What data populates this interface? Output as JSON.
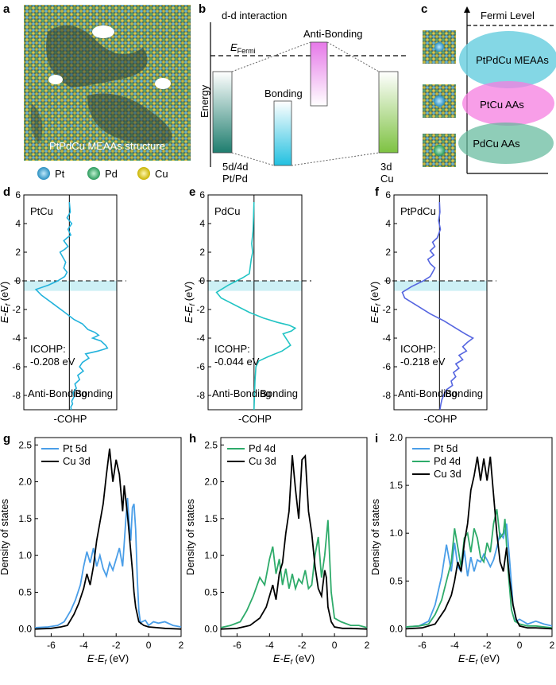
{
  "panel_labels": [
    "a",
    "b",
    "c",
    "d",
    "e",
    "f",
    "g",
    "h",
    "i"
  ],
  "panel_a": {
    "caption": "PtPdCu MEAAs structure",
    "legend": [
      {
        "label": "Pt",
        "color": "#3aa6d8"
      },
      {
        "label": "Pd",
        "color": "#3cb371"
      },
      {
        "label": "Cu",
        "color": "#e6d21c"
      }
    ]
  },
  "panel_b": {
    "title": "d-d interaction",
    "y_label": "Energy",
    "fermi_label": "E",
    "fermi_sub": "Fermi",
    "bonding": "Bonding",
    "antibonding": "Anti-Bonding",
    "left_bottom_1": "5d/4d",
    "left_bottom_2": "Pt/Pd",
    "right_bottom_1": "3d",
    "right_bottom_2": "Cu"
  },
  "panel_c": {
    "fermi_label": "Fermi Level",
    "ellipses": [
      "PtPdCu MEAAs",
      "PtCu AAs",
      "PdCu AAs"
    ],
    "colors": [
      "#6fd0e0",
      "#f57de0",
      "#5fb89a"
    ]
  },
  "chart_data": [
    {
      "panel": "d",
      "type": "line",
      "title": "PtCu",
      "series_color": "#22b2dc",
      "ylabel": "E-E",
      "ylabel_sub": "f",
      "ylabel_unit": " (eV)",
      "xlabel": "-COHP",
      "ylim": [
        -9,
        6
      ],
      "yticks": [
        -8,
        -6,
        -4,
        -2,
        0,
        2,
        4,
        6
      ],
      "left_label": "Anti-Bonding",
      "right_label": "Bonding",
      "icohp_label": "ICOHP:",
      "icohp_value": "-0.208 eV",
      "x": [
        0,
        0.02,
        -0.05,
        0.05,
        -0.03,
        0.03,
        -0.05,
        -0.12,
        -0.03,
        -0.1,
        -0.2,
        -0.15,
        -0.08,
        -0.12,
        -0.05,
        -0.1,
        -0.25,
        -0.45,
        -0.72,
        -0.6,
        -0.35,
        -0.1,
        0.1,
        0.28,
        0.4,
        0.55,
        0.63,
        0.5,
        0.68,
        0.78,
        0.82,
        0.62,
        0.35,
        0.42,
        0.28,
        0.22,
        0.3,
        0.18,
        0.22,
        0.12,
        0.15,
        0.08,
        0.1,
        0.05,
        0.07,
        0.03,
        0.04
      ],
      "y": [
        5.5,
        4.8,
        4.4,
        4.0,
        3.6,
        3.2,
        3.0,
        2.8,
        2.4,
        2.2,
        2.0,
        1.7,
        1.3,
        0.9,
        0.6,
        0.3,
        0.0,
        -0.3,
        -0.6,
        -1.0,
        -1.6,
        -2.2,
        -2.7,
        -3.0,
        -3.4,
        -3.6,
        -3.8,
        -4.0,
        -4.2,
        -4.5,
        -4.7,
        -4.9,
        -5.1,
        -5.4,
        -5.7,
        -6.0,
        -6.3,
        -6.6,
        -6.9,
        -7.2,
        -7.5,
        -7.8,
        -8.1,
        -8.4,
        -8.6,
        -8.8,
        -9.0
      ]
    },
    {
      "panel": "e",
      "type": "line",
      "title": "PdCu",
      "series_color": "#22c4c4",
      "ylabel": "E-E",
      "ylabel_sub": "f",
      "ylabel_unit": " (eV)",
      "xlabel": "-COHP",
      "ylim": [
        -9,
        6
      ],
      "yticks": [
        -8,
        -6,
        -4,
        -2,
        0,
        2,
        4,
        6
      ],
      "left_label": "Anti-Bonding",
      "right_label": "Bonding",
      "icohp_label": "ICOHP:",
      "icohp_value": "-0.044 eV",
      "x": [
        0,
        -0.01,
        -0.02,
        -0.05,
        -0.03,
        -0.06,
        -0.08,
        -0.1,
        -0.25,
        -0.55,
        -0.8,
        -0.7,
        -0.4,
        -0.1,
        0.2,
        0.5,
        0.75,
        0.88,
        0.8,
        0.62,
        0.7,
        0.78,
        0.6,
        0.3,
        0.1,
        0.04,
        0.02,
        0.01,
        0
      ],
      "y": [
        5.5,
        4.5,
        3.5,
        2.6,
        2.0,
        1.5,
        1.0,
        0.5,
        0.2,
        -0.3,
        -0.8,
        -1.2,
        -1.7,
        -2.2,
        -2.6,
        -2.9,
        -3.1,
        -3.3,
        -3.5,
        -3.7,
        -4.1,
        -4.5,
        -4.9,
        -5.3,
        -5.6,
        -6.0,
        -7.0,
        -8.0,
        -9.0
      ]
    },
    {
      "panel": "f",
      "type": "line",
      "title": "PtPdCu",
      "series_color": "#5565e0",
      "ylabel": "E-E",
      "ylabel_sub": "f",
      "ylabel_unit": " (eV)",
      "xlabel": "-COHP",
      "ylim": [
        -9,
        6
      ],
      "yticks": [
        -8,
        -6,
        -4,
        -2,
        0,
        2,
        4,
        6
      ],
      "left_label": "Anti-Bonding",
      "right_label": "Bonding",
      "icohp_label": "ICOHP:",
      "icohp_value": "-0.218 eV",
      "x": [
        0,
        0.01,
        -0.02,
        0.02,
        -0.05,
        -0.15,
        -0.1,
        -0.2,
        -0.12,
        -0.25,
        -0.2,
        -0.1,
        -0.15,
        -0.2,
        -0.35,
        -0.6,
        -0.8,
        -0.75,
        -0.5,
        -0.2,
        0.1,
        0.35,
        0.55,
        0.72,
        0.6,
        0.5,
        0.58,
        0.42,
        0.5,
        0.35,
        0.42,
        0.3,
        0.35,
        0.25,
        0.28,
        0.15,
        0.1,
        0.05,
        0.03,
        0.01
      ],
      "y": [
        5.5,
        4.8,
        4.2,
        3.6,
        3.0,
        2.7,
        2.4,
        2.1,
        1.8,
        1.5,
        1.2,
        0.9,
        0.6,
        0.3,
        0.0,
        -0.4,
        -0.8,
        -1.2,
        -1.7,
        -2.3,
        -2.8,
        -3.3,
        -3.7,
        -4.0,
        -4.3,
        -4.6,
        -4.9,
        -5.2,
        -5.5,
        -5.8,
        -6.1,
        -6.4,
        -6.7,
        -7.0,
        -7.3,
        -7.6,
        -7.9,
        -8.3,
        -8.6,
        -9.0
      ]
    },
    {
      "panel": "g",
      "type": "line",
      "ylabel": "Density of states",
      "xlabel": "E-E",
      "xlabel_sub": "f",
      "xlabel_unit": " (eV)",
      "xlim": [
        -7,
        2
      ],
      "ylim": [
        -0.1,
        2.6
      ],
      "xticks": [
        -6,
        -4,
        -2,
        0,
        2
      ],
      "yticks": [
        0.0,
        0.5,
        1.0,
        1.5,
        2.0,
        2.5
      ],
      "series": [
        {
          "name": "Pt 5d",
          "color": "#4a9ee8",
          "x": [
            -7,
            -6.2,
            -5.6,
            -5.2,
            -4.8,
            -4.5,
            -4.2,
            -4.0,
            -3.8,
            -3.6,
            -3.4,
            -3.2,
            -3.0,
            -2.8,
            -2.6,
            -2.4,
            -2.2,
            -2.0,
            -1.8,
            -1.6,
            -1.4,
            -1.3,
            -1.2,
            -1.1,
            -1.0,
            -0.9,
            -0.8,
            -0.7,
            -0.6,
            -0.5,
            -0.4,
            -0.2,
            0,
            0.3,
            0.6,
            1.0,
            1.5,
            2
          ],
          "v": [
            0.02,
            0.03,
            0.05,
            0.1,
            0.25,
            0.4,
            0.6,
            0.85,
            1.05,
            0.9,
            1.1,
            0.85,
            1.0,
            0.82,
            0.72,
            0.9,
            0.8,
            0.95,
            1.1,
            0.85,
            1.5,
            1.78,
            1.45,
            1.2,
            1.65,
            1.7,
            1.35,
            0.7,
            0.25,
            0.08,
            0.1,
            0.12,
            0.05,
            0.1,
            0.08,
            0.1,
            0.05,
            0.03
          ]
        },
        {
          "name": "Cu 3d",
          "color": "#000000",
          "x": [
            -7,
            -6,
            -5.4,
            -5.0,
            -4.6,
            -4.3,
            -4.0,
            -3.8,
            -3.6,
            -3.4,
            -3.2,
            -3.0,
            -2.8,
            -2.6,
            -2.4,
            -2.2,
            -2.0,
            -1.8,
            -1.6,
            -1.5,
            -1.3,
            -1.2,
            -1.0,
            -0.9,
            -0.8,
            -0.6,
            -0.3,
            0,
            0.5,
            1,
            2
          ],
          "v": [
            0,
            0.01,
            0.03,
            0.05,
            0.2,
            0.35,
            0.55,
            0.75,
            0.6,
            0.85,
            1.2,
            1.45,
            1.7,
            2.1,
            2.45,
            2.0,
            2.3,
            2.1,
            1.6,
            1.95,
            1.55,
            1.3,
            0.8,
            0.5,
            0.3,
            0.1,
            0.05,
            0.03,
            0.02,
            0.01,
            0
          ]
        }
      ]
    },
    {
      "panel": "h",
      "type": "line",
      "ylabel": "Density of states",
      "xlabel": "E-E",
      "xlabel_sub": "f",
      "xlabel_unit": " (eV)",
      "xlim": [
        -7,
        2
      ],
      "ylim": [
        -0.1,
        2.6
      ],
      "xticks": [
        -6,
        -4,
        -2,
        0,
        2
      ],
      "yticks": [
        0.0,
        0.5,
        1.0,
        1.5,
        2.0,
        2.5
      ],
      "series": [
        {
          "name": "Pd 4d",
          "color": "#2eab6a",
          "x": [
            -7,
            -6.4,
            -5.8,
            -5.4,
            -5.0,
            -4.6,
            -4.3,
            -4.0,
            -3.8,
            -3.6,
            -3.4,
            -3.2,
            -3.0,
            -2.8,
            -2.6,
            -2.4,
            -2.2,
            -2.0,
            -1.8,
            -1.6,
            -1.4,
            -1.2,
            -1.0,
            -0.8,
            -0.6,
            -0.4,
            -0.2,
            0,
            0.4,
            1.0,
            1.5,
            2
          ],
          "v": [
            0.02,
            0.05,
            0.1,
            0.25,
            0.45,
            0.7,
            0.6,
            0.95,
            1.12,
            0.75,
            0.95,
            0.6,
            0.82,
            0.55,
            0.75,
            0.55,
            0.68,
            0.62,
            0.8,
            0.55,
            0.6,
            1.0,
            1.25,
            0.7,
            1.0,
            1.48,
            0.5,
            0.15,
            0.1,
            0.05,
            0.05,
            0.02
          ]
        },
        {
          "name": "Cu 3d",
          "color": "#000000",
          "x": [
            -7,
            -6,
            -5.2,
            -4.6,
            -4.2,
            -4.0,
            -3.8,
            -3.6,
            -3.4,
            -3.2,
            -3.0,
            -2.8,
            -2.6,
            -2.4,
            -2.2,
            -2.0,
            -1.8,
            -1.6,
            -1.4,
            -1.2,
            -1.0,
            -0.8,
            -0.6,
            -0.5,
            -0.4,
            -0.2,
            0,
            0.5,
            1,
            2
          ],
          "v": [
            0,
            0.01,
            0.05,
            0.15,
            0.3,
            0.45,
            0.6,
            0.4,
            0.75,
            0.9,
            1.3,
            1.6,
            2.36,
            1.9,
            1.5,
            2.3,
            2.35,
            1.6,
            1.3,
            0.85,
            0.55,
            0.45,
            0.8,
            0.7,
            0.3,
            0.1,
            0.03,
            0.01,
            0.01,
            0
          ]
        }
      ]
    },
    {
      "panel": "i",
      "type": "line",
      "ylabel": "Density of states",
      "xlabel": "E-E",
      "xlabel_sub": "f",
      "xlabel_unit": " (eV)",
      "xlim": [
        -7,
        2
      ],
      "ylim": [
        -0.08,
        2.0
      ],
      "xticks": [
        -6,
        -4,
        -2,
        0,
        2
      ],
      "yticks": [
        0.0,
        0.5,
        1.0,
        1.5,
        2.0
      ],
      "series": [
        {
          "name": "Pt 5d",
          "color": "#4a9ee8",
          "x": [
            -7,
            -6.2,
            -5.6,
            -5.2,
            -4.8,
            -4.5,
            -4.2,
            -4.0,
            -3.8,
            -3.6,
            -3.4,
            -3.2,
            -3.0,
            -2.8,
            -2.6,
            -2.4,
            -2.2,
            -2.0,
            -1.8,
            -1.6,
            -1.4,
            -1.2,
            -1.0,
            -0.8,
            -0.6,
            -0.4,
            -0.2,
            0,
            0.5,
            1,
            1.5,
            2
          ],
          "v": [
            0.02,
            0.03,
            0.08,
            0.25,
            0.55,
            0.88,
            0.6,
            0.9,
            0.65,
            0.6,
            0.82,
            0.55,
            0.75,
            0.6,
            0.72,
            0.7,
            0.78,
            0.72,
            0.65,
            0.72,
            0.85,
            1.0,
            0.95,
            1.1,
            0.7,
            0.25,
            0.08,
            0.1,
            0.05,
            0.08,
            0.05,
            0.03
          ]
        },
        {
          "name": "Pd 4d",
          "color": "#2eab6a",
          "x": [
            -7,
            -6.2,
            -5.6,
            -5.2,
            -4.8,
            -4.5,
            -4.2,
            -4.0,
            -3.8,
            -3.6,
            -3.4,
            -3.2,
            -3.0,
            -2.8,
            -2.6,
            -2.4,
            -2.2,
            -2.0,
            -1.8,
            -1.6,
            -1.4,
            -1.2,
            -1.0,
            -0.9,
            -0.7,
            -0.5,
            -0.3,
            0,
            0.5,
            1,
            1.5,
            2
          ],
          "v": [
            0.02,
            0.03,
            0.05,
            0.15,
            0.3,
            0.5,
            0.7,
            1.05,
            0.85,
            0.65,
            0.95,
            1.0,
            0.8,
            1.05,
            0.95,
            0.75,
            0.7,
            0.9,
            0.8,
            1.1,
            1.25,
            0.95,
            1.0,
            1.15,
            0.6,
            0.2,
            0.08,
            0.05,
            0.03,
            0.03,
            0.02,
            0.01
          ]
        },
        {
          "name": "Cu 3d",
          "color": "#000000",
          "x": [
            -7,
            -6,
            -5.2,
            -4.6,
            -4.2,
            -4.0,
            -3.8,
            -3.6,
            -3.4,
            -3.2,
            -3.0,
            -2.8,
            -2.6,
            -2.4,
            -2.2,
            -2.0,
            -1.8,
            -1.6,
            -1.4,
            -1.2,
            -1.0,
            -0.8,
            -0.6,
            -0.4,
            -0.2,
            0,
            0.5,
            1,
            2
          ],
          "v": [
            0,
            0.01,
            0.05,
            0.2,
            0.35,
            0.5,
            0.7,
            0.6,
            0.9,
            1.1,
            1.45,
            1.6,
            1.8,
            1.55,
            1.78,
            1.55,
            1.8,
            1.4,
            1.0,
            0.7,
            0.6,
            0.85,
            0.5,
            0.25,
            0.1,
            0.03,
            0.01,
            0.01,
            0
          ]
        }
      ]
    }
  ]
}
